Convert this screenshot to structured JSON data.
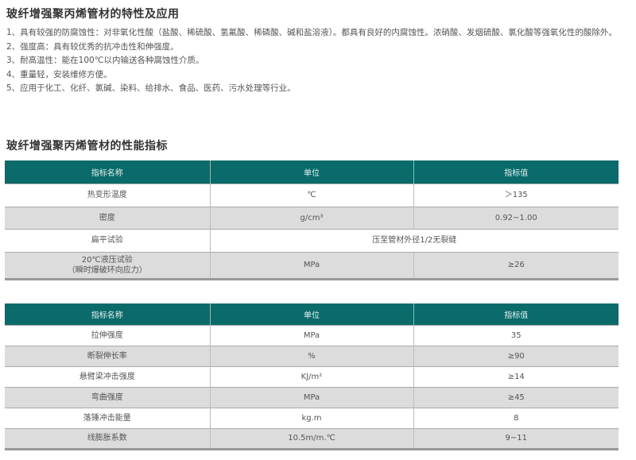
{
  "section1": {
    "title": "玻纤增强聚丙烯管材的特性及应用",
    "items": [
      "1、具有较强的防腐蚀性：对非氧化性酸（盐酸、稀硫酸、氢氟酸、稀磷酸、碱和盐溶液）。都具有良好的内腐蚀性。浓硝酸、发烟硫酸、氯化酸等强氧化性的酸除外。",
      "2、强度高：具有较优秀的抗冲击性和伸强度。",
      "3、耐高温性：能在100℃以内输送各种腐蚀性介质。",
      "4、重量轻，安装维修方便。",
      "5、应用于化工、化纤、氯碱、染料、给排水、食品、医药、污水处理等行业。"
    ]
  },
  "section2": {
    "title": "玻纤增强聚丙烯管材的性能指标"
  },
  "table1": {
    "headers": [
      "指标名称",
      "单位",
      "指标值"
    ],
    "rows": [
      {
        "name": "热变形温度",
        "unit": "℃",
        "value": "＞135"
      },
      {
        "name": "密度",
        "unit": "g/cm³",
        "value": "0.92~1.00"
      },
      {
        "name": "扁平试验",
        "merged": "压至管材外径1/2无裂缝"
      },
      {
        "name": "20℃液压试验",
        "name2": "（瞬时爆破环向应力）",
        "unit": "MPa",
        "value": "≥26"
      }
    ]
  },
  "table2": {
    "headers": [
      "指标名称",
      "单位",
      "指标值"
    ],
    "rows": [
      {
        "name": "拉伸强度",
        "unit": "MPa",
        "value": "35"
      },
      {
        "name": "断裂伸长率",
        "unit": "%",
        "value": "≥90"
      },
      {
        "name": "悬臂梁冲击强度",
        "unit": "KJ/m²",
        "value": "≥14"
      },
      {
        "name": "弯曲强度",
        "unit": "MPa",
        "value": "≥45"
      },
      {
        "name": "落锤冲击能量",
        "unit": "kg.m",
        "value": "8"
      },
      {
        "name": "线膨胀系数",
        "unit": "10.5m/m.℃",
        "value": "9~11"
      }
    ]
  },
  "colors": {
    "header": "#0b6a6a",
    "alt_row": "#dcdcdc"
  }
}
